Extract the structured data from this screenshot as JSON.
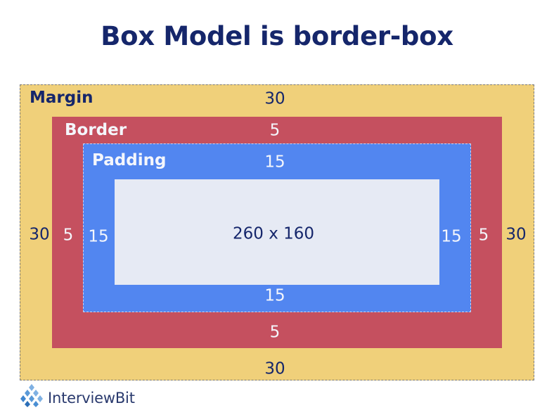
{
  "title": "Box Model is border-box",
  "margin": {
    "label": "Margin",
    "top": "30",
    "bottom": "30",
    "left": "30",
    "right": "30"
  },
  "border": {
    "label": "Border",
    "top": "5",
    "bottom": "5",
    "left": "5",
    "right": "5"
  },
  "padding": {
    "label": "Padding",
    "top": "15",
    "bottom": "15",
    "left": "15",
    "right": "15"
  },
  "content": {
    "size": "260 x 160"
  },
  "brand": {
    "name": "InterviewBit"
  },
  "colors": {
    "title": "#15266b",
    "margin": "#f0d07a",
    "border": "#c5505f",
    "padding": "#5286f0",
    "content": "#e6eaf4"
  }
}
